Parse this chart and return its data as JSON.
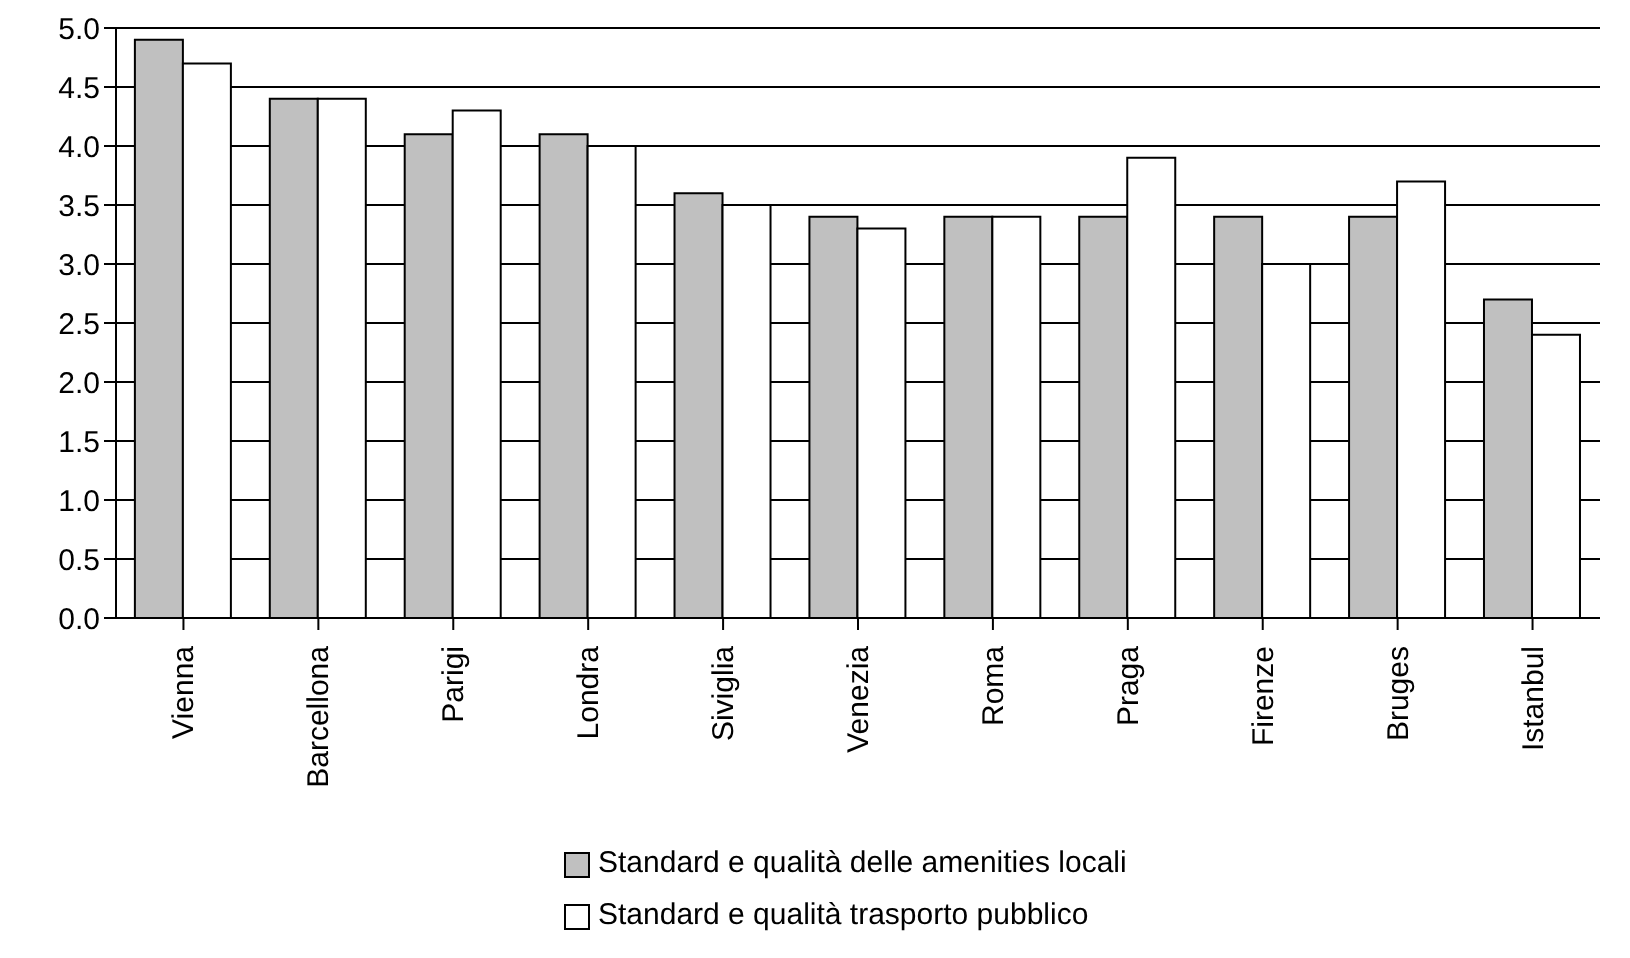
{
  "chart_data": {
    "type": "bar",
    "categories": [
      "Vienna",
      "Barcellona",
      "Parigi",
      "Londra",
      "Siviglia",
      "Venezia",
      "Roma",
      "Praga",
      "Firenze",
      "Bruges",
      "Istanbul"
    ],
    "series": [
      {
        "name": "Standard e qualità delle amenities locali",
        "color": "#c0c0c0",
        "values": [
          4.9,
          4.4,
          4.1,
          4.1,
          3.6,
          3.4,
          3.4,
          3.4,
          3.4,
          3.4,
          2.7
        ]
      },
      {
        "name": "Standard e qualità trasporto pubblico",
        "color": "#ffffff",
        "values": [
          4.7,
          4.4,
          4.3,
          4.0,
          3.5,
          3.3,
          3.4,
          3.9,
          3.0,
          3.7,
          2.4
        ]
      }
    ],
    "ylim": [
      0,
      5
    ],
    "yticks": [
      {
        "value": 0,
        "label": "0.0"
      },
      0.5,
      {
        "value": 1,
        "label": "1.0"
      },
      1.5,
      {
        "value": 2,
        "label": "2.0"
      },
      2.5,
      {
        "value": 3,
        "label": "3.0"
      },
      3.5,
      {
        "value": 4,
        "label": "4.0"
      },
      4.5,
      {
        "value": 5,
        "label": "5.0"
      }
    ],
    "grid": "y",
    "legend": "bottom"
  }
}
